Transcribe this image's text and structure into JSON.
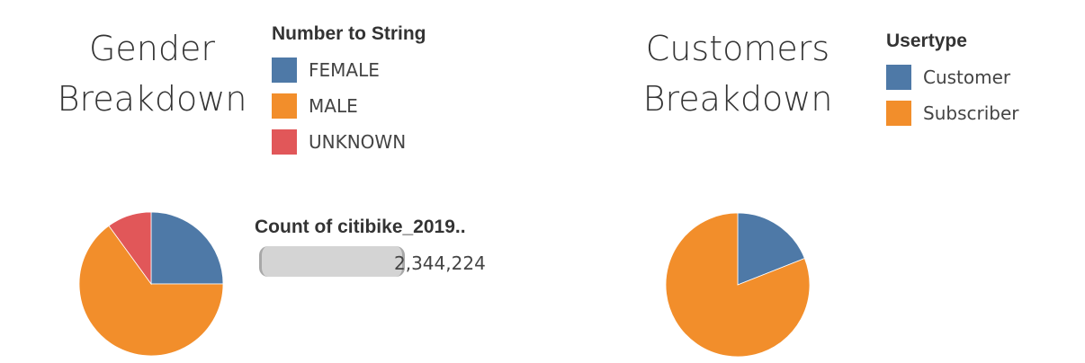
{
  "colors": {
    "blue": "#4e79a7",
    "orange": "#f28e2b",
    "red": "#e15759"
  },
  "gender_panel": {
    "title_line1": "Gender",
    "title_line2": "Breakdown",
    "legend_title": "Number to String",
    "legend": [
      {
        "label": "FEMALE",
        "color": "#4e79a7"
      },
      {
        "label": "MALE",
        "color": "#f28e2b"
      },
      {
        "label": "UNKNOWN",
        "color": "#e15759"
      }
    ],
    "kpi_title": "Count of citibike_2019..",
    "kpi_value": "2,344,224"
  },
  "customers_panel": {
    "title_line1": "Customers",
    "title_line2": "Breakdown",
    "legend_title": "Usertype",
    "legend": [
      {
        "label": "Customer",
        "color": "#4e79a7"
      },
      {
        "label": "Subscriber",
        "color": "#f28e2b"
      }
    ]
  },
  "chart_data": [
    {
      "type": "pie",
      "title": "Gender Breakdown",
      "legend_title": "Number to String",
      "slices": [
        {
          "label": "FEMALE",
          "value": 25,
          "color": "#4e79a7"
        },
        {
          "label": "MALE",
          "value": 65,
          "color": "#f28e2b"
        },
        {
          "label": "UNKNOWN",
          "value": 10,
          "color": "#e15759"
        }
      ],
      "legend_position": "top-right"
    },
    {
      "type": "pie",
      "title": "Customers Breakdown",
      "legend_title": "Usertype",
      "slices": [
        {
          "label": "Customer",
          "value": 19,
          "color": "#4e79a7"
        },
        {
          "label": "Subscriber",
          "value": 81,
          "color": "#f28e2b"
        }
      ],
      "legend_position": "top-right"
    }
  ]
}
